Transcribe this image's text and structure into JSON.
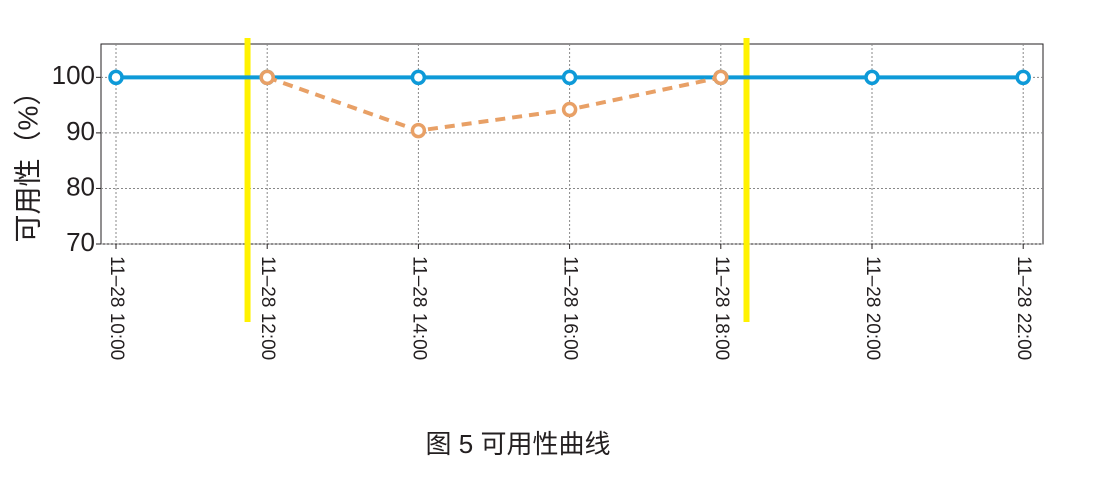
{
  "chart_data": {
    "type": "line",
    "title": "图 5  可用性曲线",
    "y_label": "可用性（%）",
    "categories": [
      "11–28 10:00",
      "11–28 12:00",
      "11–28 14:00",
      "11–28 16:00",
      "11–28 18:00",
      "11–28 20:00",
      "11–28 22:00"
    ],
    "series": [
      {
        "color": "#0e9ad8",
        "dashed": false,
        "values": [
          100,
          100,
          100,
          100,
          100,
          100,
          100
        ]
      },
      {
        "color": "#e8a066",
        "dashed": true,
        "values": [
          null,
          100,
          90.4,
          94.2,
          100,
          null,
          null
        ]
      }
    ],
    "ylim": [
      70,
      106
    ],
    "yticks": [
      70,
      80,
      90,
      100
    ],
    "grid": true,
    "vertical_lines": {
      "color": "#fff200",
      "positions": [
        0.87,
        4.17
      ]
    }
  }
}
